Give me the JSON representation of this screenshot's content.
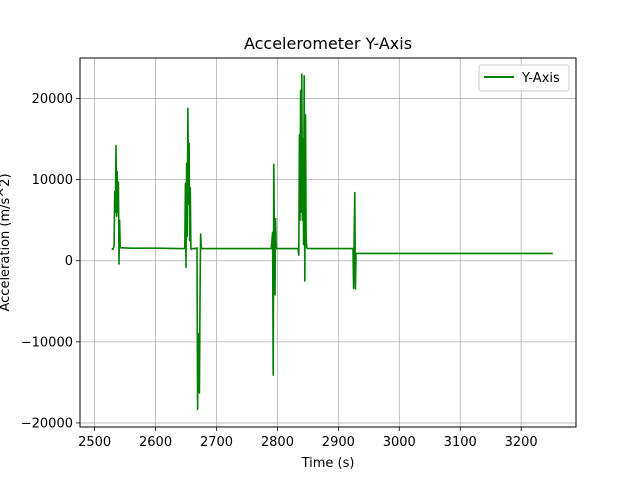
{
  "chart_data": {
    "type": "line",
    "title": "Accelerometer Y-Axis",
    "xlabel": "Time (s)",
    "ylabel": "Acceleration (m/s^2)",
    "xlim": [
      2476,
      3290
    ],
    "ylim": [
      -20500,
      25000
    ],
    "xticks": [
      2500,
      2600,
      2700,
      2800,
      2900,
      3000,
      3100,
      3200
    ],
    "yticks": [
      -20000,
      -10000,
      0,
      10000,
      20000
    ],
    "grid": true,
    "legend_position": "top-right",
    "series": [
      {
        "name": "Y-Axis",
        "color": "#008000",
        "x": [
          2528,
          2530,
          2532,
          2533,
          2534,
          2535,
          2536,
          2537,
          2538,
          2539,
          2540,
          2541,
          2542,
          2545,
          2560,
          2600,
          2640,
          2648,
          2649,
          2650,
          2651,
          2652,
          2653,
          2654,
          2655,
          2656,
          2657,
          2658,
          2659,
          2660,
          2665,
          2668,
          2669,
          2670,
          2671,
          2672,
          2673,
          2674,
          2675,
          2676,
          2678,
          2700,
          2750,
          2790,
          2792,
          2793,
          2794,
          2795,
          2796,
          2797,
          2798,
          2800,
          2820,
          2834,
          2835,
          2836,
          2837,
          2838,
          2839,
          2840,
          2841,
          2842,
          2843,
          2844,
          2845,
          2846,
          2847,
          2848,
          2850,
          2860,
          2880,
          2900,
          2920,
          2924,
          2925,
          2926,
          2927,
          2928,
          2929,
          2930,
          2935,
          3000,
          3100,
          3200,
          3252
        ],
        "y": [
          1500,
          1400,
          1800,
          8500,
          6000,
          14200,
          5500,
          11000,
          6000,
          9700,
          -400,
          5000,
          1600,
          1600,
          1550,
          1550,
          1500,
          1500,
          9500,
          -800,
          12000,
          3000,
          18800,
          7000,
          14500,
          2500,
          9000,
          1500,
          1400,
          1500,
          1500,
          1600,
          -18300,
          -9000,
          -13000,
          -16300,
          -5000,
          3300,
          1600,
          1500,
          1500,
          1500,
          1500,
          1500,
          3500,
          -14100,
          11900,
          2000,
          -4200,
          5200,
          1500,
          1500,
          1500,
          1500,
          700,
          15500,
          5000,
          21000,
          6000,
          23000,
          5000,
          15000,
          2000,
          22800,
          -2500,
          18000,
          3000,
          1600,
          1500,
          1500,
          1500,
          1500,
          1500,
          1500,
          -3400,
          3300,
          8400,
          -3500,
          900,
          900,
          900,
          900,
          900,
          900,
          900
        ]
      }
    ]
  }
}
